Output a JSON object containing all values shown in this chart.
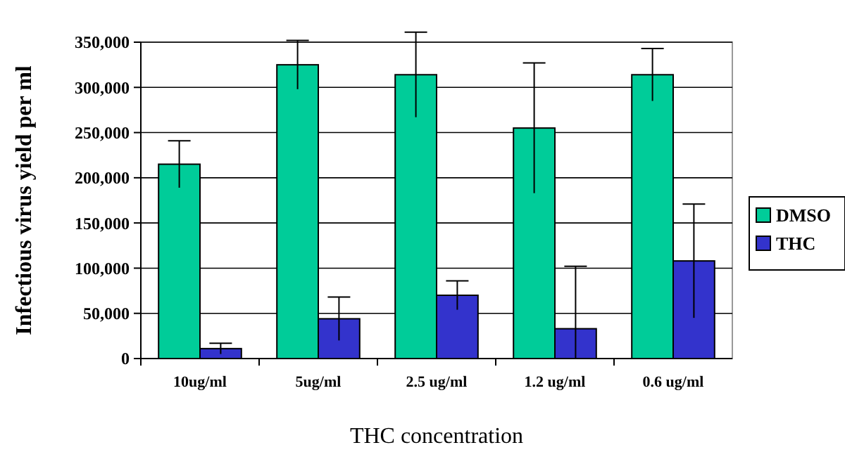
{
  "chart_data": {
    "type": "bar",
    "xlabel": "THC concentration",
    "ylabel": "Infectious virus yield per ml",
    "categories": [
      "10ug/ml",
      "5ug/ml",
      "2.5 ug/ml",
      "1.2 ug/ml",
      "0.6 ug/ml"
    ],
    "series": [
      {
        "name": "DMSO",
        "color": "#00cc99",
        "values": [
          215000,
          325000,
          314000,
          255000,
          314000
        ],
        "errors": [
          26000,
          27000,
          47000,
          72000,
          29000
        ]
      },
      {
        "name": "THC",
        "color": "#3333cc",
        "values": [
          11000,
          44000,
          70000,
          33000,
          108000
        ],
        "errors": [
          6000,
          24000,
          16000,
          [
            0,
            102000
          ],
          63000
        ]
      }
    ],
    "ylim": [
      0,
      350000
    ],
    "yticks": [
      {
        "value": 0,
        "label": "0"
      },
      {
        "value": 50000,
        "label": "50,000"
      },
      {
        "value": 100000,
        "label": "100,000"
      },
      {
        "value": 150000,
        "label": "150,000"
      },
      {
        "value": 200000,
        "label": "200,000"
      },
      {
        "value": 250000,
        "label": "250,000"
      },
      {
        "value": 300000,
        "label": "300,000"
      },
      {
        "value": 350000,
        "label": "350,000"
      }
    ],
    "grid": "y",
    "legend": "right"
  }
}
